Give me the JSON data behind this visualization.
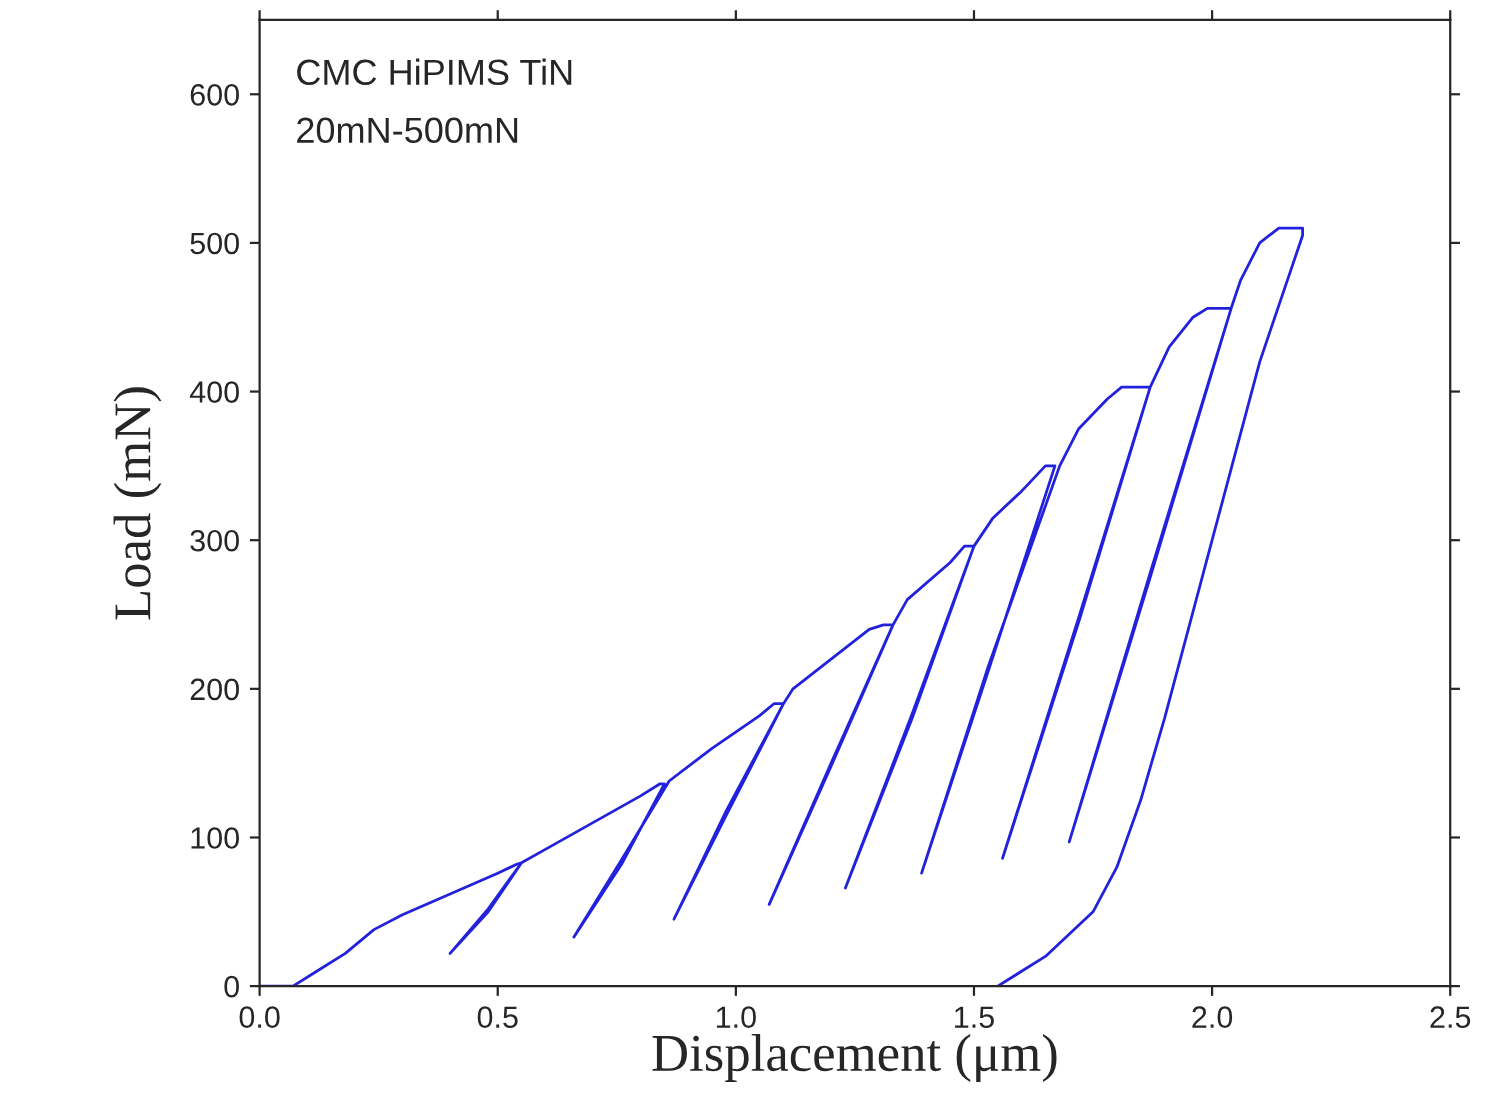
{
  "chart_data": {
    "type": "line",
    "xlabel": "Displacement (μm)",
    "ylabel": "Load (mN)",
    "annotations": [
      "CMC HiPIMS TiN",
      "20mN-500mN"
    ],
    "xlim": [
      0,
      2.5
    ],
    "xticks": [
      {
        "value": 0,
        "label": "0.0"
      },
      0.5,
      {
        "value": 1,
        "label": "1.0"
      },
      1.5,
      {
        "value": 2,
        "label": "2.0"
      },
      2.5
    ],
    "ylim": [
      0,
      650
    ],
    "yticks": [
      0,
      100,
      200,
      300,
      400,
      500,
      600
    ],
    "marker": "none",
    "line_style": "solid",
    "series": [
      {
        "color": "#2222dd",
        "x": [
          0,
          0.07,
          0.12,
          0.18,
          0.24,
          0.3,
          0.4,
          0.5,
          0.54,
          0.55,
          0.48,
          0.4,
          0.48,
          0.55,
          0.6,
          0.7,
          0.8,
          0.84,
          0.85,
          0.76,
          0.66,
          0.76,
          0.86,
          0.95,
          1.05,
          1.08,
          1.1,
          0.98,
          0.87,
          0.98,
          1.1,
          1.12,
          1.2,
          1.28,
          1.31,
          1.33,
          1.2,
          1.07,
          1.2,
          1.33,
          1.36,
          1.45,
          1.48,
          1.5,
          1.37,
          1.23,
          1.37,
          1.5,
          1.54,
          1.6,
          1.65,
          1.67,
          1.53,
          1.39,
          1.53,
          1.68,
          1.72,
          1.78,
          1.81,
          1.87,
          1.72,
          1.56,
          1.72,
          1.87,
          1.91,
          1.96,
          1.99,
          2.04,
          1.87,
          1.7,
          1.87,
          2.04,
          2.06,
          2.1,
          2.14,
          2.19,
          2.19,
          2.1,
          2.0,
          1.9,
          1.85,
          1.8,
          1.75,
          1.65,
          1.55
        ],
        "values": [
          0,
          0,
          10,
          22,
          38,
          48,
          62,
          76,
          82,
          83,
          50,
          22,
          52,
          83,
          92,
          110,
          128,
          136,
          136,
          82,
          33,
          85,
          138,
          160,
          182,
          190,
          190,
          115,
          45,
          118,
          190,
          200,
          220,
          240,
          243,
          243,
          148,
          55,
          150,
          243,
          260,
          285,
          296,
          296,
          180,
          66,
          183,
          296,
          315,
          333,
          350,
          350,
          212,
          76,
          215,
          350,
          375,
          395,
          403,
          403,
          245,
          86,
          248,
          403,
          430,
          450,
          456,
          456,
          275,
          97,
          278,
          456,
          475,
          500,
          510,
          510,
          505,
          420,
          300,
          180,
          125,
          80,
          50,
          20,
          0
        ]
      }
    ]
  }
}
